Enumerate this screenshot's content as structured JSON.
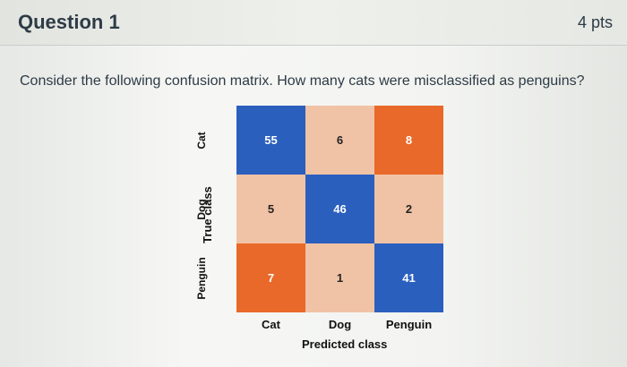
{
  "question": {
    "title": "Question 1",
    "points": "4 pts",
    "prompt": "Consider the following confusion matrix. How many cats were misclassified as penguins?"
  },
  "chart_data": {
    "type": "heatmap",
    "xlabel": "Predicted class",
    "ylabel": "True class",
    "x_categories": [
      "Cat",
      "Dog",
      "Penguin"
    ],
    "y_categories": [
      "Cat",
      "Dog",
      "Penguin"
    ],
    "values": [
      [
        55,
        6,
        8
      ],
      [
        5,
        46,
        2
      ],
      [
        7,
        1,
        41
      ]
    ],
    "colors": {
      "high": "#2a5fbe",
      "mid_orange": "#e8692a",
      "light": "#f1c3a6"
    }
  }
}
